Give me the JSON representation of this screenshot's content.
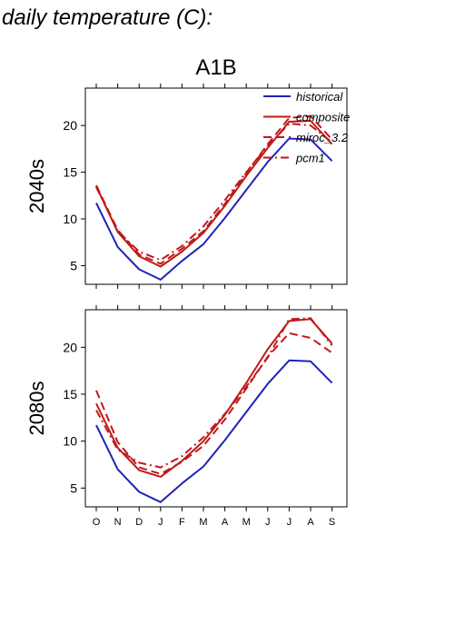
{
  "page_title": "daily temperature (C):",
  "scenario": "A1B",
  "legend": [
    "historical",
    "composite",
    "miroc_3.2",
    "pcm1"
  ],
  "colors": {
    "historical": "#1f23b8",
    "composite": "#c01818",
    "miroc_3.2": "#c01818",
    "pcm1": "#c01818"
  },
  "chart_data": [
    {
      "type": "line",
      "ylabel": "2040s",
      "categories": [
        "O",
        "N",
        "D",
        "J",
        "F",
        "M",
        "A",
        "M",
        "J",
        "J",
        "A",
        "S"
      ],
      "ylim": [
        3,
        24
      ],
      "yticks": [
        5,
        10,
        15,
        20
      ],
      "grid": false,
      "legend_position": "top-right",
      "series": [
        {
          "name": "historical",
          "style": "solid",
          "color": "#1f23b8",
          "values": [
            11.7,
            7.0,
            4.6,
            3.5,
            5.5,
            7.3,
            10.1,
            13.1,
            16.1,
            18.6,
            18.5,
            16.2
          ]
        },
        {
          "name": "composite",
          "style": "solid",
          "color": "#c01818",
          "values": [
            13.5,
            8.6,
            6.0,
            4.9,
            6.5,
            8.5,
            11.4,
            14.6,
            17.6,
            20.4,
            20.5,
            18.0
          ]
        },
        {
          "name": "miroc_3.2",
          "style": "dashed",
          "color": "#c01818",
          "values": [
            13.6,
            8.8,
            6.2,
            5.2,
            6.8,
            8.7,
            11.6,
            14.9,
            18.0,
            20.8,
            21.0,
            18.5
          ]
        },
        {
          "name": "pcm1",
          "style": "dashdot",
          "color": "#c01818",
          "values": [
            13.4,
            8.7,
            6.5,
            5.6,
            7.1,
            9.2,
            12.0,
            15.0,
            17.8,
            20.2,
            20.0,
            18.2
          ]
        }
      ]
    },
    {
      "type": "line",
      "ylabel": "2080s",
      "categories": [
        "O",
        "N",
        "D",
        "J",
        "F",
        "M",
        "A",
        "M",
        "J",
        "J",
        "A",
        "S"
      ],
      "ylim": [
        3,
        24
      ],
      "yticks": [
        5,
        10,
        15,
        20
      ],
      "grid": false,
      "series": [
        {
          "name": "historical",
          "style": "solid",
          "color": "#1f23b8",
          "values": [
            11.7,
            7.0,
            4.6,
            3.5,
            5.5,
            7.3,
            10.1,
            13.1,
            16.1,
            18.6,
            18.5,
            16.2
          ]
        },
        {
          "name": "composite",
          "style": "solid",
          "color": "#c01818",
          "values": [
            14.0,
            9.3,
            6.9,
            6.2,
            7.9,
            10.0,
            12.8,
            16.2,
            19.8,
            22.8,
            23.0,
            20.4
          ]
        },
        {
          "name": "miroc_3.2",
          "style": "dashed",
          "color": "#c01818",
          "values": [
            15.4,
            9.9,
            7.2,
            6.5,
            7.8,
            9.5,
            12.3,
            15.6,
            19.0,
            21.5,
            21.0,
            19.4
          ]
        },
        {
          "name": "pcm1",
          "style": "dashdot",
          "color": "#c01818",
          "values": [
            13.3,
            9.1,
            7.7,
            7.2,
            8.4,
            10.4,
            12.9,
            15.8,
            18.9,
            23.0,
            23.1,
            20.2
          ]
        }
      ]
    }
  ]
}
